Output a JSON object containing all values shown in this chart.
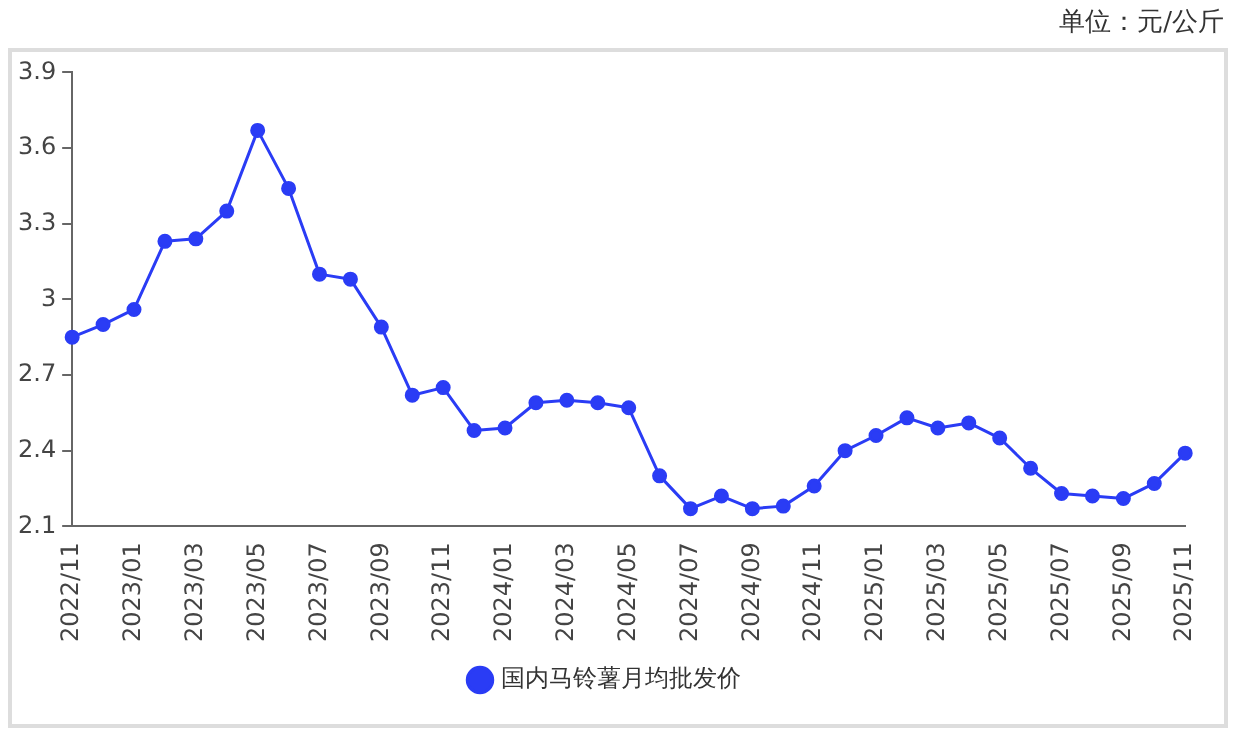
{
  "chart_data": {
    "type": "line",
    "categories": [
      "2022/11",
      null,
      "2023/01",
      null,
      "2023/03",
      null,
      "2023/05",
      null,
      "2023/07",
      null,
      "2023/09",
      null,
      "2023/11",
      null,
      "2024/01",
      null,
      "2024/03",
      null,
      "2024/05",
      null,
      "2024/07",
      null,
      "2024/09",
      null,
      "2024/11",
      null,
      "2025/01",
      null,
      "2025/03",
      null,
      "2025/05",
      null,
      "2025/07",
      null,
      "2025/09",
      null,
      "2025/11"
    ],
    "series": [
      {
        "name": "国内马铃薯月均批发价",
        "color": "#2a3cf5",
        "values": [
          2.85,
          2.9,
          2.96,
          3.23,
          3.24,
          3.35,
          3.67,
          3.44,
          3.1,
          3.08,
          2.89,
          2.62,
          2.65,
          2.48,
          2.49,
          2.59,
          2.6,
          2.59,
          2.57,
          2.3,
          2.17,
          2.22,
          2.17,
          2.18,
          2.26,
          2.4,
          2.46,
          2.53,
          2.49,
          2.51,
          2.45,
          2.33,
          2.23,
          2.22,
          2.21,
          2.27,
          2.39
        ]
      }
    ],
    "ylim": [
      2.1,
      3.9
    ],
    "yticks": [
      2.1,
      2.4,
      2.7,
      3,
      3.3,
      3.6,
      3.9
    ],
    "annotations": [
      "单位：元/公斤"
    ],
    "legend": "bottom",
    "marker": "circle",
    "line_style": "solid",
    "grid": false
  }
}
